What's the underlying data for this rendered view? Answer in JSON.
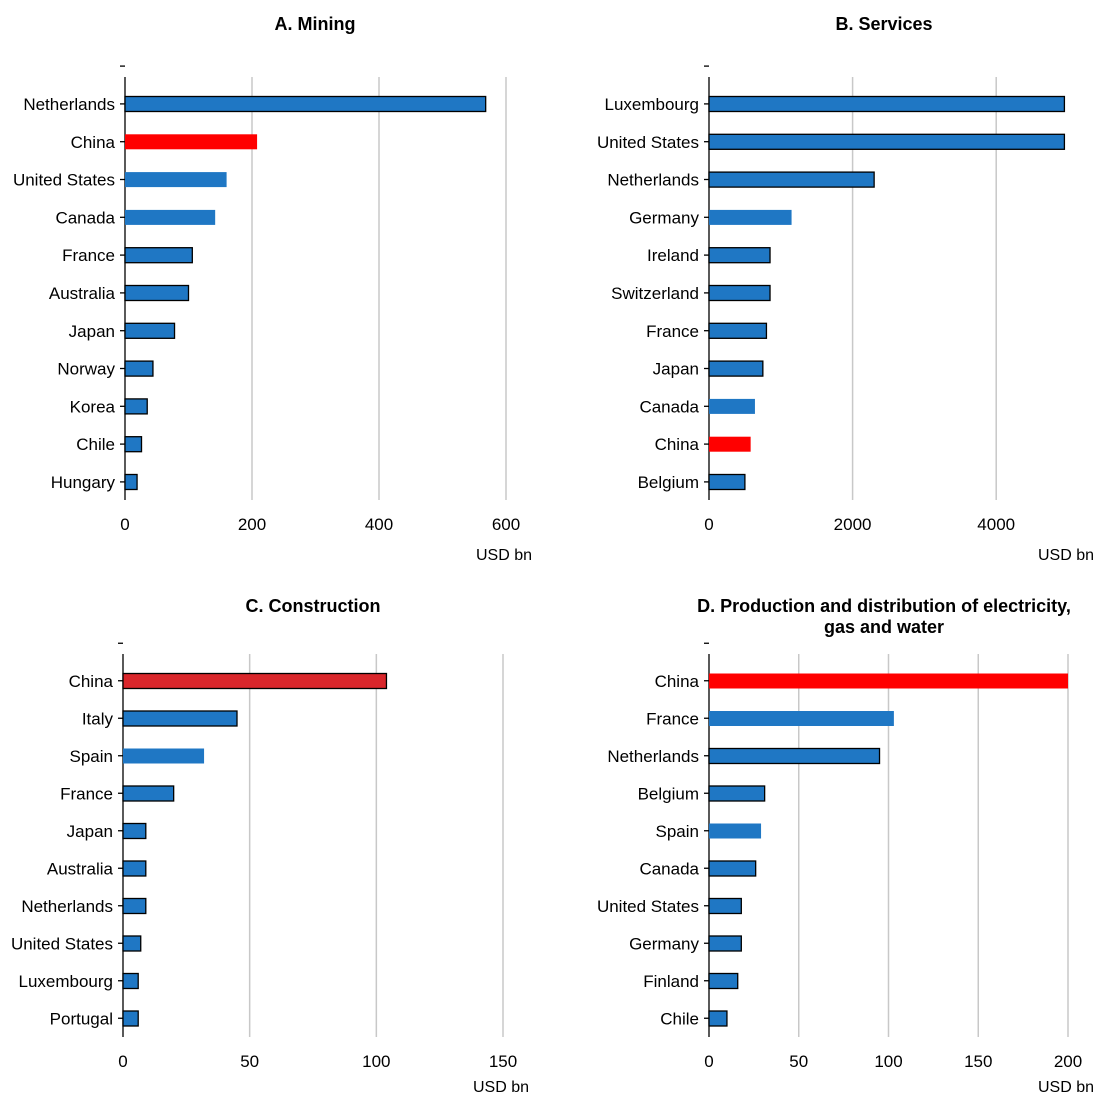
{
  "chart_data": [
    {
      "type": "bar",
      "orientation": "horizontal",
      "title": "A. Mining",
      "categories": [
        "Netherlands",
        "China",
        "United States",
        "Canada",
        "France",
        "Australia",
        "Japan",
        "Norway",
        "Korea",
        "Chile",
        "Hungary"
      ],
      "values": [
        568,
        208,
        160,
        142,
        106,
        100,
        78,
        44,
        35,
        26,
        19
      ],
      "highlight": [
        "normal",
        "china",
        "plain",
        "plain",
        "normal",
        "normal",
        "normal",
        "normal",
        "normal",
        "normal",
        "normal"
      ],
      "xlim": [
        0,
        600
      ],
      "xticks": [
        0,
        200,
        400,
        600
      ],
      "xlabel": "USD bn",
      "grid": "vertical"
    },
    {
      "type": "bar",
      "orientation": "horizontal",
      "title": "B. Services",
      "categories": [
        "Luxembourg",
        "United States",
        "Netherlands",
        "Germany",
        "Ireland",
        "Switzerland",
        "France",
        "Japan",
        "Canada",
        "China",
        "Belgium"
      ],
      "values": [
        4950,
        4950,
        2300,
        1150,
        850,
        850,
        800,
        750,
        640,
        580,
        500
      ],
      "highlight": [
        "normal",
        "normal",
        "normal",
        "plain",
        "normal",
        "normal",
        "normal",
        "normal",
        "plain",
        "china",
        "normal"
      ],
      "xlim": [
        0,
        5000
      ],
      "xticks": [
        0,
        2000,
        4000
      ],
      "xlabel": "USD bn",
      "grid": "vertical"
    },
    {
      "type": "bar",
      "orientation": "horizontal",
      "title": "C. Construction",
      "categories": [
        "China",
        "Italy",
        "Spain",
        "France",
        "Japan",
        "Australia",
        "Netherlands",
        "United States",
        "Luxembourg",
        "Portugal"
      ],
      "values": [
        104,
        45,
        32,
        20,
        9,
        9,
        9,
        7,
        6,
        6
      ],
      "highlight": [
        "china-outlined",
        "normal",
        "plain",
        "normal",
        "normal",
        "normal",
        "normal",
        "normal",
        "normal",
        "normal"
      ],
      "xlim": [
        0,
        150
      ],
      "xticks": [
        0,
        50,
        100,
        150
      ],
      "xlabel": "USD bn",
      "grid": "vertical"
    },
    {
      "type": "bar",
      "orientation": "horizontal",
      "title": "D. Production and distribution of electricity, gas and water",
      "title_lines": [
        "D. Production and distribution of electricity,",
        "gas and water"
      ],
      "categories": [
        "China",
        "France",
        "Netherlands",
        "Belgium",
        "Spain",
        "Canada",
        "United States",
        "Germany",
        "Finland",
        "Chile"
      ],
      "values": [
        200,
        103,
        95,
        31,
        29,
        26,
        18,
        18,
        16,
        10
      ],
      "highlight": [
        "china",
        "plain",
        "normal",
        "normal",
        "plain",
        "normal",
        "normal",
        "normal",
        "normal",
        "normal"
      ],
      "xlim": [
        0,
        200
      ],
      "xticks": [
        0,
        50,
        100,
        150,
        200
      ],
      "xlabel": "USD bn",
      "grid": "vertical"
    }
  ],
  "colors": {
    "bar": "#1f77c4",
    "china": "#ff0000",
    "china_dark": "#d9262b",
    "grid": "#c8c8c8",
    "outline": "#000000"
  }
}
